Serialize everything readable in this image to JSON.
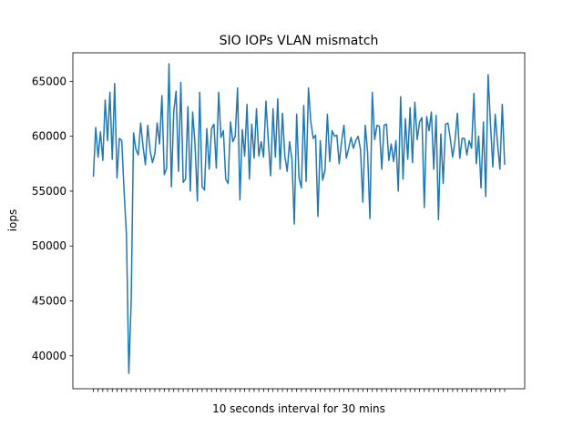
{
  "chart_data": {
    "type": "line",
    "title": "SIO IOPs VLAN mismatch",
    "xlabel": "10 seconds interval for 30 mins",
    "ylabel": "iops",
    "ylim": [
      37000,
      67600
    ],
    "y_ticks": [
      40000,
      45000,
      50000,
      55000,
      60000,
      65000
    ],
    "y_tick_labels": [
      "40000",
      "45000",
      "50000",
      "55000",
      "60000",
      "65000"
    ],
    "x_tick_labels": "hidden",
    "grid": false,
    "legend": "none",
    "colors": {
      "line": "#1f77b4",
      "axes": "#000000"
    },
    "series": [
      {
        "values": [
          56300,
          60800,
          58100,
          60400,
          57800,
          63300,
          59600,
          64000,
          57900,
          64800,
          56200,
          59800,
          59600,
          55000,
          51000,
          38400,
          45000,
          60300,
          58800,
          58300,
          61200,
          59100,
          57400,
          61000,
          58700,
          57600,
          58400,
          61200,
          59300,
          63700,
          56500,
          57100,
          66600,
          55400,
          62200,
          64100,
          56800,
          64900,
          55800,
          56100,
          62700,
          55000,
          62200,
          59300,
          54100,
          64000,
          55400,
          55100,
          60700,
          57000,
          60700,
          61100,
          57100,
          64000,
          59900,
          60500,
          56100,
          55700,
          61300,
          59500,
          60000,
          64400,
          54200,
          60600,
          58200,
          62900,
          56100,
          61100,
          58000,
          62500,
          58200,
          59500,
          58100,
          63200,
          59600,
          56400,
          62500,
          58100,
          63400,
          57000,
          62100,
          58200,
          56800,
          59500,
          57900,
          52000,
          62000,
          56200,
          55300,
          62800,
          55900,
          64400,
          61300,
          59800,
          60100,
          52700,
          59600,
          56000,
          56900,
          62000,
          57700,
          60500,
          60000,
          60100,
          57500,
          59500,
          61000,
          58000,
          58900,
          59900,
          58900,
          59600,
          60000,
          58800,
          54000,
          61000,
          58600,
          52500,
          64000,
          59700,
          61000,
          60900,
          57000,
          61000,
          61100,
          57800,
          59300,
          57700,
          59600,
          55000,
          63600,
          56100,
          61600,
          57900,
          62600,
          57600,
          63100,
          59700,
          61300,
          61700,
          53500,
          61800,
          60500,
          62200,
          57000,
          61900,
          52400,
          60200,
          55700,
          61100,
          61200,
          59800,
          58100,
          59600,
          62100,
          58000,
          59800,
          59800,
          58300,
          59600,
          58900,
          63900,
          57500,
          60000,
          55300,
          61300,
          54500,
          65600,
          61100,
          57200,
          62000,
          59300,
          57000,
          62900,
          57400
        ]
      }
    ]
  }
}
